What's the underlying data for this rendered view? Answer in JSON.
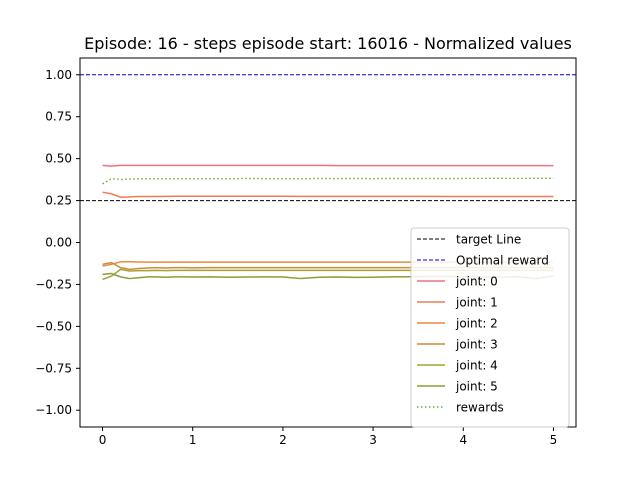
{
  "chart_data": {
    "type": "line",
    "title": "Episode: 16 - steps episode start: 16016 - Normalized values",
    "xlabel": "",
    "ylabel": "",
    "xlim": [
      -0.25,
      5.25
    ],
    "ylim": [
      -1.1,
      1.1
    ],
    "xticks": [
      0,
      1,
      2,
      3,
      4,
      5
    ],
    "xtick_labels": [
      "0",
      "1",
      "2",
      "3",
      "4",
      "5"
    ],
    "yticks": [
      1.0,
      0.75,
      0.5,
      0.25,
      0.0,
      -0.25,
      -0.5,
      -0.75,
      -1.0
    ],
    "ytick_labels": [
      "1.00",
      "0.75",
      "0.50",
      "0.25",
      "0.00",
      "−0.25",
      "−0.50",
      "−0.75",
      "−1.00"
    ],
    "grid": false,
    "legend_position": "lower-right",
    "hlines": [
      {
        "name": "target Line",
        "y": 0.25,
        "color": "#000000",
        "style": "dashed"
      },
      {
        "name": "Optimal reward",
        "y": 1.0,
        "color": "#0000cc",
        "style": "dashed"
      }
    ],
    "x": [
      0,
      0.1,
      0.2,
      0.3,
      0.4,
      0.5,
      0.6,
      0.7,
      0.8,
      0.9,
      1.0,
      1.2,
      1.4,
      1.6,
      1.8,
      2.0,
      2.2,
      2.4,
      2.6,
      2.8,
      3.0,
      3.2,
      3.4,
      3.6,
      3.8,
      4.0,
      4.2,
      4.4,
      4.6,
      4.8,
      5.0
    ],
    "series": [
      {
        "name": "joint: 0",
        "color": "#f07080",
        "style": "solid",
        "values": [
          0.46,
          0.455,
          0.46,
          0.46,
          0.46,
          0.46,
          0.46,
          0.46,
          0.46,
          0.46,
          0.46,
          0.46,
          0.46,
          0.46,
          0.46,
          0.46,
          0.46,
          0.46,
          0.458,
          0.458,
          0.458,
          0.458,
          0.458,
          0.458,
          0.458,
          0.458,
          0.458,
          0.458,
          0.458,
          0.458,
          0.458
        ]
      },
      {
        "name": "joint: 1",
        "color": "#f07a55",
        "style": "solid",
        "values": [
          0.3,
          0.29,
          0.27,
          0.272,
          0.274,
          0.274,
          0.274,
          0.275,
          0.276,
          0.276,
          0.276,
          0.276,
          0.276,
          0.276,
          0.276,
          0.276,
          0.275,
          0.275,
          0.275,
          0.275,
          0.275,
          0.275,
          0.275,
          0.275,
          0.274,
          0.274,
          0.274,
          0.274,
          0.274,
          0.274,
          0.274
        ]
      },
      {
        "name": "joint: 2",
        "color": "#e8893e",
        "style": "solid",
        "values": [
          -0.14,
          -0.13,
          -0.115,
          -0.115,
          -0.116,
          -0.117,
          -0.117,
          -0.117,
          -0.117,
          -0.117,
          -0.117,
          -0.117,
          -0.117,
          -0.117,
          -0.117,
          -0.117,
          -0.117,
          -0.117,
          -0.117,
          -0.117,
          -0.117,
          -0.117,
          -0.117,
          -0.117,
          -0.117,
          -0.117,
          -0.118,
          -0.118,
          -0.118,
          -0.118,
          -0.118
        ]
      },
      {
        "name": "joint: 3",
        "color": "#cc8c3a",
        "style": "solid",
        "values": [
          -0.13,
          -0.12,
          -0.15,
          -0.16,
          -0.155,
          -0.152,
          -0.15,
          -0.152,
          -0.15,
          -0.15,
          -0.151,
          -0.15,
          -0.15,
          -0.15,
          -0.15,
          -0.15,
          -0.15,
          -0.15,
          -0.15,
          -0.15,
          -0.15,
          -0.15,
          -0.15,
          -0.15,
          -0.15,
          -0.15,
          -0.15,
          -0.15,
          -0.15,
          -0.15,
          -0.15
        ]
      },
      {
        "name": "joint: 4",
        "color": "#a8a030",
        "style": "solid",
        "values": [
          -0.22,
          -0.2,
          -0.16,
          -0.17,
          -0.168,
          -0.168,
          -0.166,
          -0.168,
          -0.166,
          -0.166,
          -0.166,
          -0.166,
          -0.166,
          -0.166,
          -0.166,
          -0.166,
          -0.166,
          -0.166,
          -0.166,
          -0.166,
          -0.166,
          -0.166,
          -0.166,
          -0.166,
          -0.166,
          -0.166,
          -0.166,
          -0.166,
          -0.166,
          -0.166,
          -0.166
        ]
      },
      {
        "name": "joint: 5",
        "color": "#8e9c3a",
        "style": "solid",
        "values": [
          -0.19,
          -0.185,
          -0.205,
          -0.215,
          -0.21,
          -0.205,
          -0.205,
          -0.207,
          -0.205,
          -0.205,
          -0.206,
          -0.205,
          -0.207,
          -0.206,
          -0.205,
          -0.206,
          -0.215,
          -0.207,
          -0.206,
          -0.208,
          -0.207,
          -0.205,
          -0.204,
          -0.203,
          -0.203,
          -0.203,
          -0.206,
          -0.207,
          -0.204,
          -0.215,
          -0.2
        ]
      },
      {
        "name": "rewards",
        "color": "#6ab03a",
        "style": "dotted",
        "values": [
          0.35,
          0.38,
          0.375,
          0.378,
          0.38,
          0.38,
          0.38,
          0.38,
          0.38,
          0.381,
          0.38,
          0.381,
          0.38,
          0.382,
          0.381,
          0.381,
          0.38,
          0.382,
          0.381,
          0.382,
          0.381,
          0.382,
          0.381,
          0.382,
          0.381,
          0.382,
          0.382,
          0.383,
          0.382,
          0.383,
          0.383
        ]
      }
    ]
  }
}
